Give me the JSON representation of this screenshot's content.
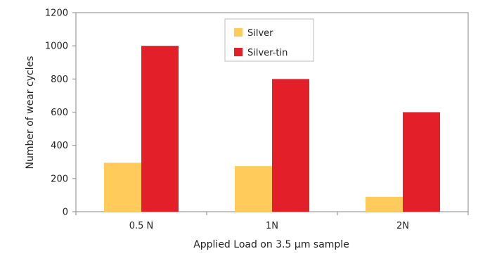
{
  "chart_data": {
    "type": "bar",
    "categories": [
      "0.5 N",
      "1N",
      "2N"
    ],
    "series": [
      {
        "name": "Silver",
        "values": [
          295,
          275,
          90
        ],
        "color": "#FFCC5C"
      },
      {
        "name": "Silver-tin",
        "values": [
          1000,
          800,
          600
        ],
        "color": "#E3202A"
      }
    ],
    "xlabel": "Applied Load on 3.5 µm sample",
    "ylabel": "Number of wear cycles",
    "ylim": [
      0,
      1200
    ],
    "yticks": [
      0,
      200,
      400,
      600,
      800,
      1000,
      1200
    ],
    "grid": false,
    "legend_position": "top-center",
    "frame_color": "#9A9A9A"
  }
}
